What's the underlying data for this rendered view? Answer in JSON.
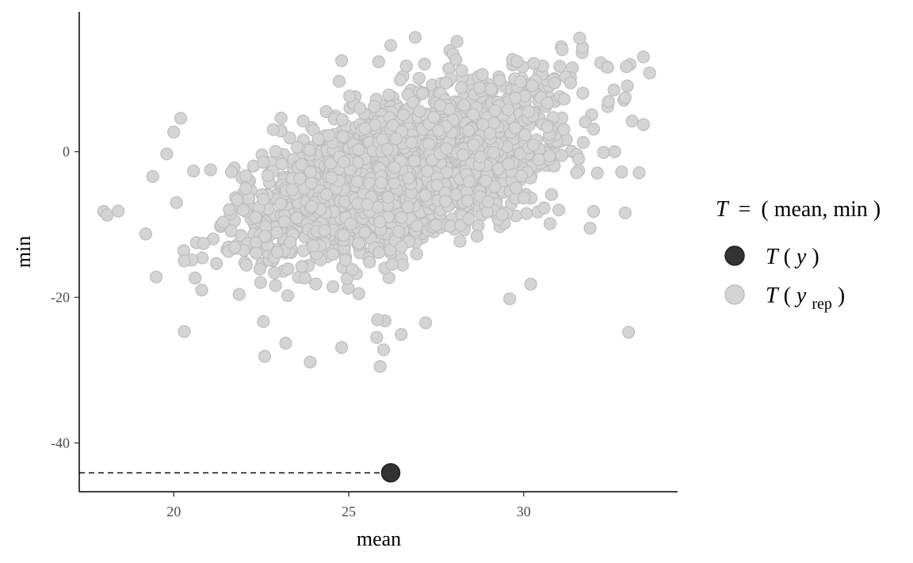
{
  "chart_data": {
    "type": "scatter",
    "xlabel": "mean",
    "ylabel": "min",
    "xlim": [
      17.3,
      34.4
    ],
    "ylim": [
      -46.7,
      19.2
    ],
    "x_ticks": [
      {
        "value": 20,
        "label": "20"
      },
      {
        "value": 25,
        "label": "25"
      },
      {
        "value": 30,
        "label": "30"
      }
    ],
    "y_ticks": [
      {
        "value": 0,
        "label": "0"
      },
      {
        "value": -20,
        "label": "-20"
      },
      {
        "value": -40,
        "label": "-40"
      }
    ],
    "grid": false,
    "legend_position": "right",
    "legend": {
      "title_prefix": "T",
      "title_equals": "=",
      "title_open": "(",
      "title_body": "mean, min",
      "title_close": ")",
      "items": [
        {
          "key": "observed",
          "func": "T",
          "open": "(",
          "var": "y",
          "sub": "",
          "close": ")"
        },
        {
          "key": "replicated",
          "func": "T",
          "open": "(",
          "var": "y",
          "sub": "rep",
          "close": ")"
        }
      ]
    },
    "series": [
      {
        "key": "observed",
        "color": "#333333",
        "points": [
          [
            26.2,
            -44.1
          ]
        ],
        "reference_line": {
          "style": "dashed",
          "to_y": -44.1
        }
      },
      {
        "key": "replicated",
        "color": "#d4d4d4",
        "stroke": "#bdbdbd",
        "cloud": {
          "count": 2600,
          "mean": [
            26.6,
            -2.5
          ],
          "sd": [
            2.05,
            5.8
          ],
          "corr": 0.55,
          "x_range": [
            18.0,
            33.6
          ],
          "y_range": [
            -29.5,
            15.7
          ]
        },
        "outliers": [
          [
            18.0,
            -8.2
          ],
          [
            18.1,
            -8.7
          ],
          [
            19.2,
            -11.3
          ],
          [
            19.5,
            -17.2
          ],
          [
            19.4,
            -3.4
          ],
          [
            19.8,
            -0.3
          ],
          [
            20.0,
            2.7
          ],
          [
            20.2,
            4.6
          ],
          [
            20.3,
            -24.7
          ],
          [
            20.3,
            -15.0
          ],
          [
            20.8,
            -19.0
          ],
          [
            22.6,
            -28.1
          ],
          [
            23.9,
            -28.9
          ],
          [
            24.8,
            -26.9
          ],
          [
            25.9,
            -29.5
          ],
          [
            26.0,
            -27.2
          ],
          [
            25.8,
            -25.5
          ],
          [
            26.5,
            -25.1
          ],
          [
            27.2,
            -23.5
          ],
          [
            23.2,
            -26.3
          ],
          [
            29.6,
            -20.2
          ],
          [
            30.2,
            -18.2
          ],
          [
            31.9,
            -10.5
          ],
          [
            32.0,
            -8.2
          ],
          [
            32.6,
            0.0
          ],
          [
            32.8,
            -2.8
          ],
          [
            33.1,
            4.2
          ],
          [
            33.3,
            -2.9
          ],
          [
            32.9,
            -8.4
          ],
          [
            33.0,
            -24.8
          ],
          [
            33.6,
            10.8
          ],
          [
            31.6,
            15.6
          ],
          [
            26.9,
            15.7
          ],
          [
            26.2,
            14.6
          ],
          [
            24.8,
            12.5
          ],
          [
            31.1,
            14.0
          ],
          [
            32.2,
            12.2
          ],
          [
            32.4,
            11.6
          ],
          [
            32.9,
            7.4
          ],
          [
            32.0,
            3.1
          ]
        ]
      }
    ]
  }
}
